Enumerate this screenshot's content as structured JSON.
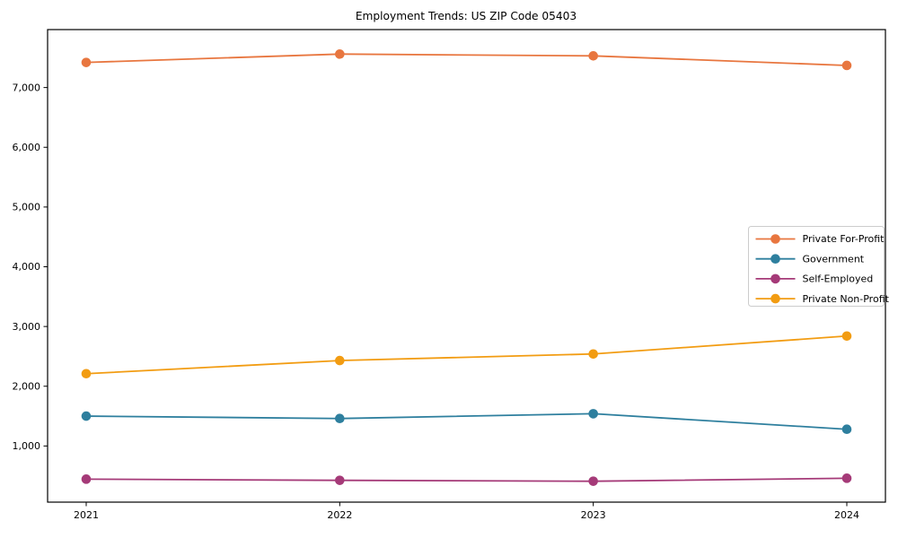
{
  "chart_data": {
    "type": "line",
    "title": "Employment Trends: US ZIP Code 05403",
    "x": [
      2021,
      2022,
      2023,
      2024
    ],
    "xtick_labels": [
      "2021",
      "2022",
      "2023",
      "2024"
    ],
    "series": [
      {
        "name": "Private For-Profit",
        "color": "#e8763f",
        "values": [
          7420,
          7560,
          7530,
          7370
        ]
      },
      {
        "name": "Government",
        "color": "#2e7f9e",
        "values": [
          1500,
          1460,
          1540,
          1280
        ]
      },
      {
        "name": "Self-Employed",
        "color": "#a53a78",
        "values": [
          445,
          425,
          410,
          460
        ]
      },
      {
        "name": "Private Non-Profit",
        "color": "#f29c12",
        "values": [
          2210,
          2430,
          2540,
          2840
        ]
      }
    ],
    "xlabel": "",
    "ylabel": "",
    "ylim": [
      60,
      7970
    ],
    "yticks": [
      1000,
      2000,
      3000,
      4000,
      5000,
      6000,
      7000
    ],
    "ytick_labels": [
      "1,000",
      "2,000",
      "3,000",
      "4,000",
      "5,000",
      "6,000",
      "7,000"
    ],
    "grid": false,
    "legend_position": "right",
    "marker": "circle",
    "axis_color": "#000000",
    "legend_border_color": "#cccccc",
    "background_color": "#ffffff"
  }
}
